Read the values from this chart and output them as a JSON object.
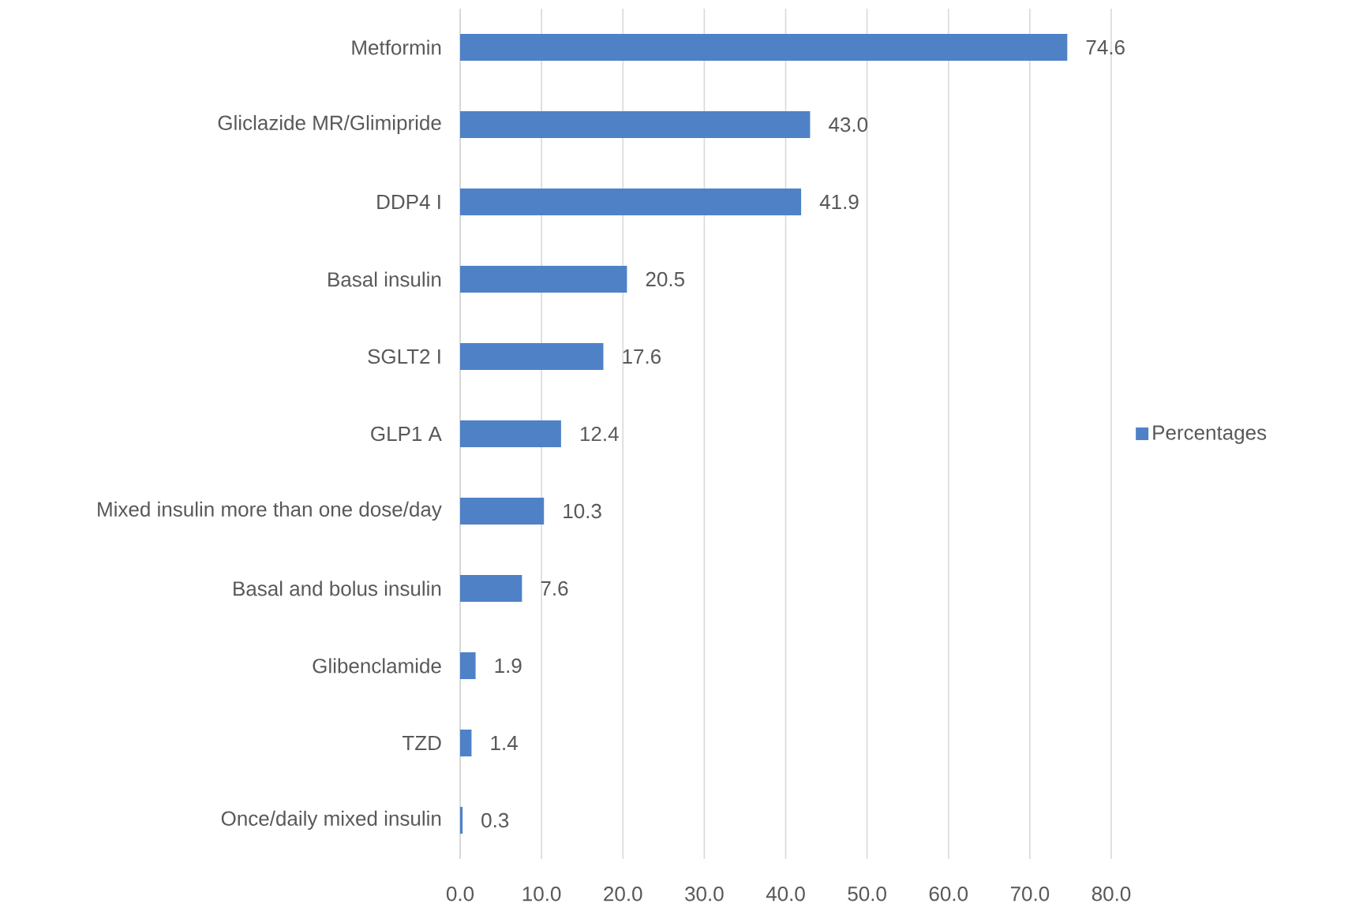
{
  "chart_data": {
    "type": "bar",
    "orientation": "horizontal",
    "categories": [
      "Metformin",
      "Gliclazide MR/Glimipride",
      "DDP4 I",
      "Basal insulin",
      "SGLT2 I",
      "GLP1 A",
      "Mixed insulin more than one dose/day",
      "Basal and bolus insulin",
      "Glibenclamide",
      "TZD",
      "Once/daily mixed insulin"
    ],
    "series": [
      {
        "name": "Percentages",
        "color": "#4f81c7",
        "values": [
          74.6,
          43.0,
          41.9,
          20.5,
          17.6,
          12.4,
          10.3,
          7.6,
          1.9,
          1.4,
          0.3
        ],
        "value_labels": [
          "74.6",
          "43.0",
          "41.9",
          "20.5",
          "17.6",
          "12.4",
          "10.3",
          "7.6",
          "1.9",
          "1.4",
          "0.3"
        ]
      }
    ],
    "xlim": [
      0,
      80
    ],
    "xticks": [
      {
        "value": 0,
        "label": "0.0"
      },
      {
        "value": 10,
        "label": "10.0"
      },
      {
        "value": 20,
        "label": "20.0"
      },
      {
        "value": 30,
        "label": "30.0"
      },
      {
        "value": 40,
        "label": "40.0"
      },
      {
        "value": 50,
        "label": "50.0"
      },
      {
        "value": 60,
        "label": "60.0"
      },
      {
        "value": 70,
        "label": "70.0"
      },
      {
        "value": 80,
        "label": "80.0"
      }
    ],
    "grid": "x",
    "legend": "right"
  }
}
